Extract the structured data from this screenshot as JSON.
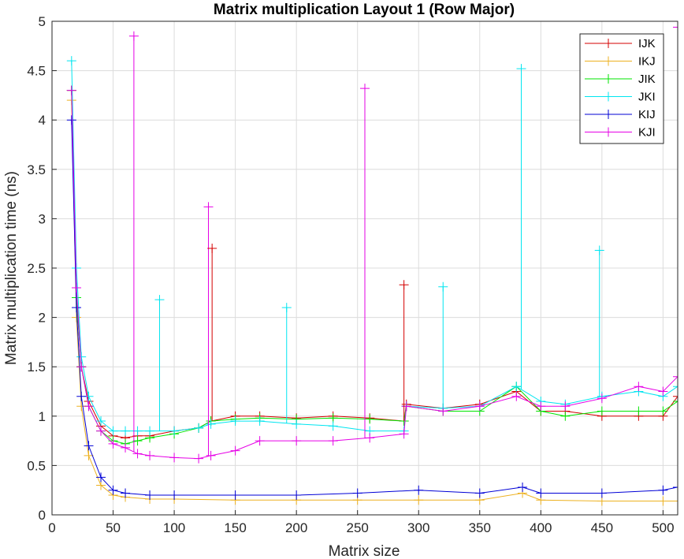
{
  "chart_data": {
    "type": "line",
    "title": "Matrix multiplication Layout 1 (Row Major)",
    "xlabel": "Matrix size",
    "ylabel": "Matrix multiplication time (ns)",
    "xlim": [
      0,
      512
    ],
    "ylim": [
      0,
      5
    ],
    "xticks": [
      0,
      50,
      100,
      150,
      200,
      250,
      300,
      350,
      400,
      450,
      500
    ],
    "yticks": [
      0,
      0.5,
      1,
      1.5,
      2,
      2.5,
      3,
      3.5,
      4,
      4.5,
      5
    ],
    "grid": true,
    "marker": "+",
    "legend_position": "top-right",
    "series": [
      {
        "name": "IJK",
        "color": "#d40000",
        "x": [
          16,
          20,
          24,
          30,
          40,
          50,
          60,
          70,
          80,
          100,
          120,
          130,
          150,
          170,
          200,
          230,
          260,
          288,
          290,
          320,
          350,
          380,
          400,
          420,
          450,
          480,
          500,
          512
        ],
        "y": [
          4.3,
          2.2,
          1.5,
          1.15,
          0.9,
          0.8,
          0.78,
          0.8,
          0.8,
          0.85,
          0.88,
          0.95,
          1.0,
          1.0,
          0.98,
          1.0,
          0.98,
          0.95,
          1.12,
          1.08,
          1.12,
          1.25,
          1.05,
          1.05,
          1.0,
          1.0,
          1.0,
          1.2
        ]
      },
      {
        "name": "IKJ",
        "color": "#edb120",
        "x": [
          16,
          20,
          24,
          30,
          40,
          50,
          60,
          80,
          100,
          150,
          200,
          250,
          300,
          350,
          385,
          400,
          450,
          500,
          512
        ],
        "y": [
          4.2,
          2.0,
          1.1,
          0.6,
          0.3,
          0.2,
          0.18,
          0.16,
          0.16,
          0.15,
          0.15,
          0.15,
          0.15,
          0.15,
          0.22,
          0.15,
          0.14,
          0.14,
          0.14
        ]
      },
      {
        "name": "JIK",
        "color": "#00e600",
        "x": [
          16,
          20,
          24,
          30,
          40,
          50,
          60,
          70,
          80,
          100,
          120,
          130,
          150,
          170,
          200,
          230,
          260,
          288,
          290,
          320,
          350,
          380,
          400,
          420,
          450,
          480,
          500,
          512
        ],
        "y": [
          4.3,
          2.2,
          1.5,
          1.1,
          0.85,
          0.75,
          0.72,
          0.75,
          0.78,
          0.82,
          0.88,
          0.95,
          0.97,
          0.98,
          0.97,
          0.98,
          0.97,
          0.95,
          1.1,
          1.05,
          1.05,
          1.3,
          1.05,
          1.0,
          1.05,
          1.05,
          1.05,
          1.15
        ]
      },
      {
        "name": "JKI",
        "color": "#00e5f0",
        "x": [
          16,
          20,
          24,
          30,
          40,
          50,
          60,
          70,
          80,
          100,
          120,
          130,
          150,
          170,
          200,
          230,
          260,
          288,
          290,
          320,
          350,
          380,
          400,
          420,
          450,
          480,
          500,
          512
        ],
        "y": [
          4.6,
          2.5,
          1.6,
          1.2,
          0.95,
          0.85,
          0.85,
          0.85,
          0.85,
          0.85,
          0.88,
          0.92,
          0.95,
          0.95,
          0.92,
          0.9,
          0.85,
          0.85,
          1.1,
          1.08,
          1.1,
          1.3,
          1.15,
          1.12,
          1.2,
          1.25,
          1.2,
          1.3
        ]
      },
      {
        "name": "KIJ",
        "color": "#0000d6",
        "x": [
          16,
          20,
          24,
          30,
          40,
          50,
          60,
          80,
          100,
          150,
          200,
          250,
          300,
          350,
          385,
          400,
          450,
          500,
          512
        ],
        "y": [
          4.0,
          2.1,
          1.2,
          0.7,
          0.38,
          0.25,
          0.22,
          0.2,
          0.2,
          0.2,
          0.2,
          0.22,
          0.25,
          0.22,
          0.28,
          0.22,
          0.22,
          0.25,
          0.28
        ]
      },
      {
        "name": "KJI",
        "color": "#e600e6",
        "x": [
          16,
          20,
          24,
          30,
          40,
          50,
          60,
          70,
          80,
          100,
          120,
          130,
          150,
          170,
          200,
          230,
          260,
          288,
          290,
          320,
          350,
          380,
          400,
          420,
          450,
          480,
          500,
          512
        ],
        "y": [
          4.3,
          2.3,
          1.5,
          1.1,
          0.85,
          0.72,
          0.68,
          0.62,
          0.6,
          0.58,
          0.57,
          0.6,
          0.65,
          0.75,
          0.75,
          0.75,
          0.78,
          0.82,
          1.1,
          1.05,
          1.1,
          1.2,
          1.1,
          1.1,
          1.18,
          1.3,
          1.25,
          1.4
        ]
      }
    ],
    "spikes": [
      {
        "series": "KJI",
        "x": 67,
        "y": 4.85
      },
      {
        "series": "KJI",
        "x": 128,
        "y": 3.12
      },
      {
        "series": "IJK",
        "x": 131,
        "y": 2.7
      },
      {
        "series": "KJI",
        "x": 256,
        "y": 4.32
      },
      {
        "series": "IJK",
        "x": 288,
        "y": 2.33
      },
      {
        "series": "JKI",
        "x": 384,
        "y": 4.52
      },
      {
        "series": "JKI",
        "x": 448,
        "y": 2.68
      },
      {
        "series": "KJI",
        "x": 512,
        "y": 4.94
      },
      {
        "series": "JKI",
        "x": 88,
        "y": 2.18
      },
      {
        "series": "JKI",
        "x": 192,
        "y": 2.1
      },
      {
        "series": "JKI",
        "x": 320,
        "y": 2.31
      }
    ]
  }
}
